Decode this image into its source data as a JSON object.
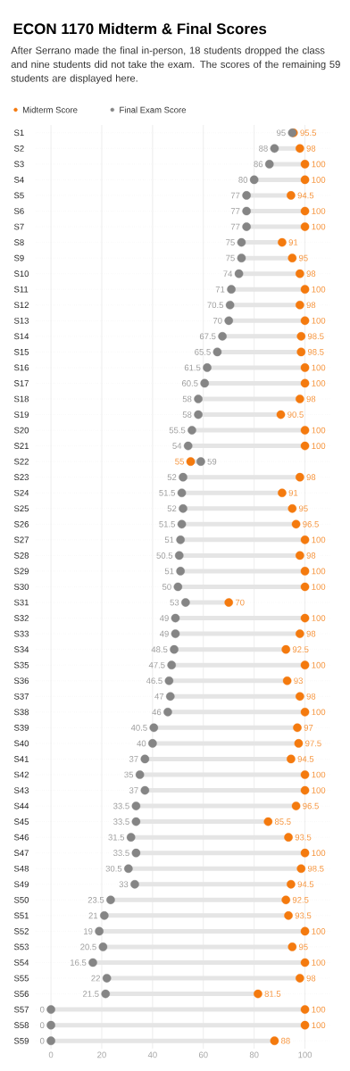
{
  "chart_data": {
    "type": "scatter",
    "orientation": "horizontal",
    "title": "ECON 1170 Midterm & Final Scores",
    "subtitle": "After Serrano made the final in-person, 18 students dropped the class and nine students did not take the exam. The scores of the remaining 59 students are displayed here.",
    "categories": [
      "S1",
      "S2",
      "S3",
      "S4",
      "S5",
      "S6",
      "S7",
      "S8",
      "S9",
      "S10",
      "S11",
      "S12",
      "S13",
      "S14",
      "S15",
      "S16",
      "S17",
      "S18",
      "S19",
      "S20",
      "S21",
      "S22",
      "S23",
      "S24",
      "S25",
      "S26",
      "S27",
      "S28",
      "S29",
      "S30",
      "S31",
      "S32",
      "S33",
      "S34",
      "S35",
      "S36",
      "S37",
      "S38",
      "S39",
      "S40",
      "S41",
      "S42",
      "S43",
      "S44",
      "S45",
      "S46",
      "S47",
      "S48",
      "S49",
      "S50",
      "S51",
      "S52",
      "S53",
      "S54",
      "S55",
      "S56",
      "S57",
      "S58",
      "S59"
    ],
    "series": [
      {
        "name": "Midterm Score",
        "color": "#f47a0e",
        "values": [
          95.5,
          98,
          100,
          100,
          94.5,
          100,
          100,
          91,
          95,
          98,
          100,
          98,
          100,
          98.5,
          98.5,
          100,
          100,
          98,
          90.5,
          100,
          100,
          55,
          98,
          91,
          95,
          96.5,
          100,
          98,
          100,
          100,
          70,
          100,
          98,
          92.5,
          100,
          93,
          98,
          100,
          97,
          97.5,
          94.5,
          100,
          100,
          96.5,
          85.5,
          93.5,
          100,
          98.5,
          94.5,
          92.5,
          93.5,
          100,
          95,
          100,
          98,
          81.5,
          100,
          100,
          88
        ]
      },
      {
        "name": "Final Exam Score",
        "color": "#858585",
        "values": [
          95,
          88,
          86,
          80,
          77,
          77,
          77,
          75,
          75,
          74,
          71,
          70.5,
          70,
          67.5,
          65.5,
          61.5,
          60.5,
          58,
          58,
          55.5,
          54,
          59,
          52,
          51.5,
          52,
          51.5,
          51,
          50.5,
          51,
          50,
          53,
          49,
          49,
          48.5,
          47.5,
          46.5,
          47,
          46,
          40.5,
          40,
          37,
          35,
          37,
          33.5,
          33.5,
          31.5,
          33.5,
          30.5,
          33,
          23.5,
          21,
          19,
          20.5,
          16.5,
          22,
          21.5,
          0,
          0,
          0
        ]
      }
    ],
    "xlim": [
      -6,
      110
    ],
    "xticks": [
      0,
      20,
      40,
      60,
      80,
      100
    ],
    "data_labels": true,
    "grid": true,
    "legend": "top left",
    "marker": "circle"
  }
}
